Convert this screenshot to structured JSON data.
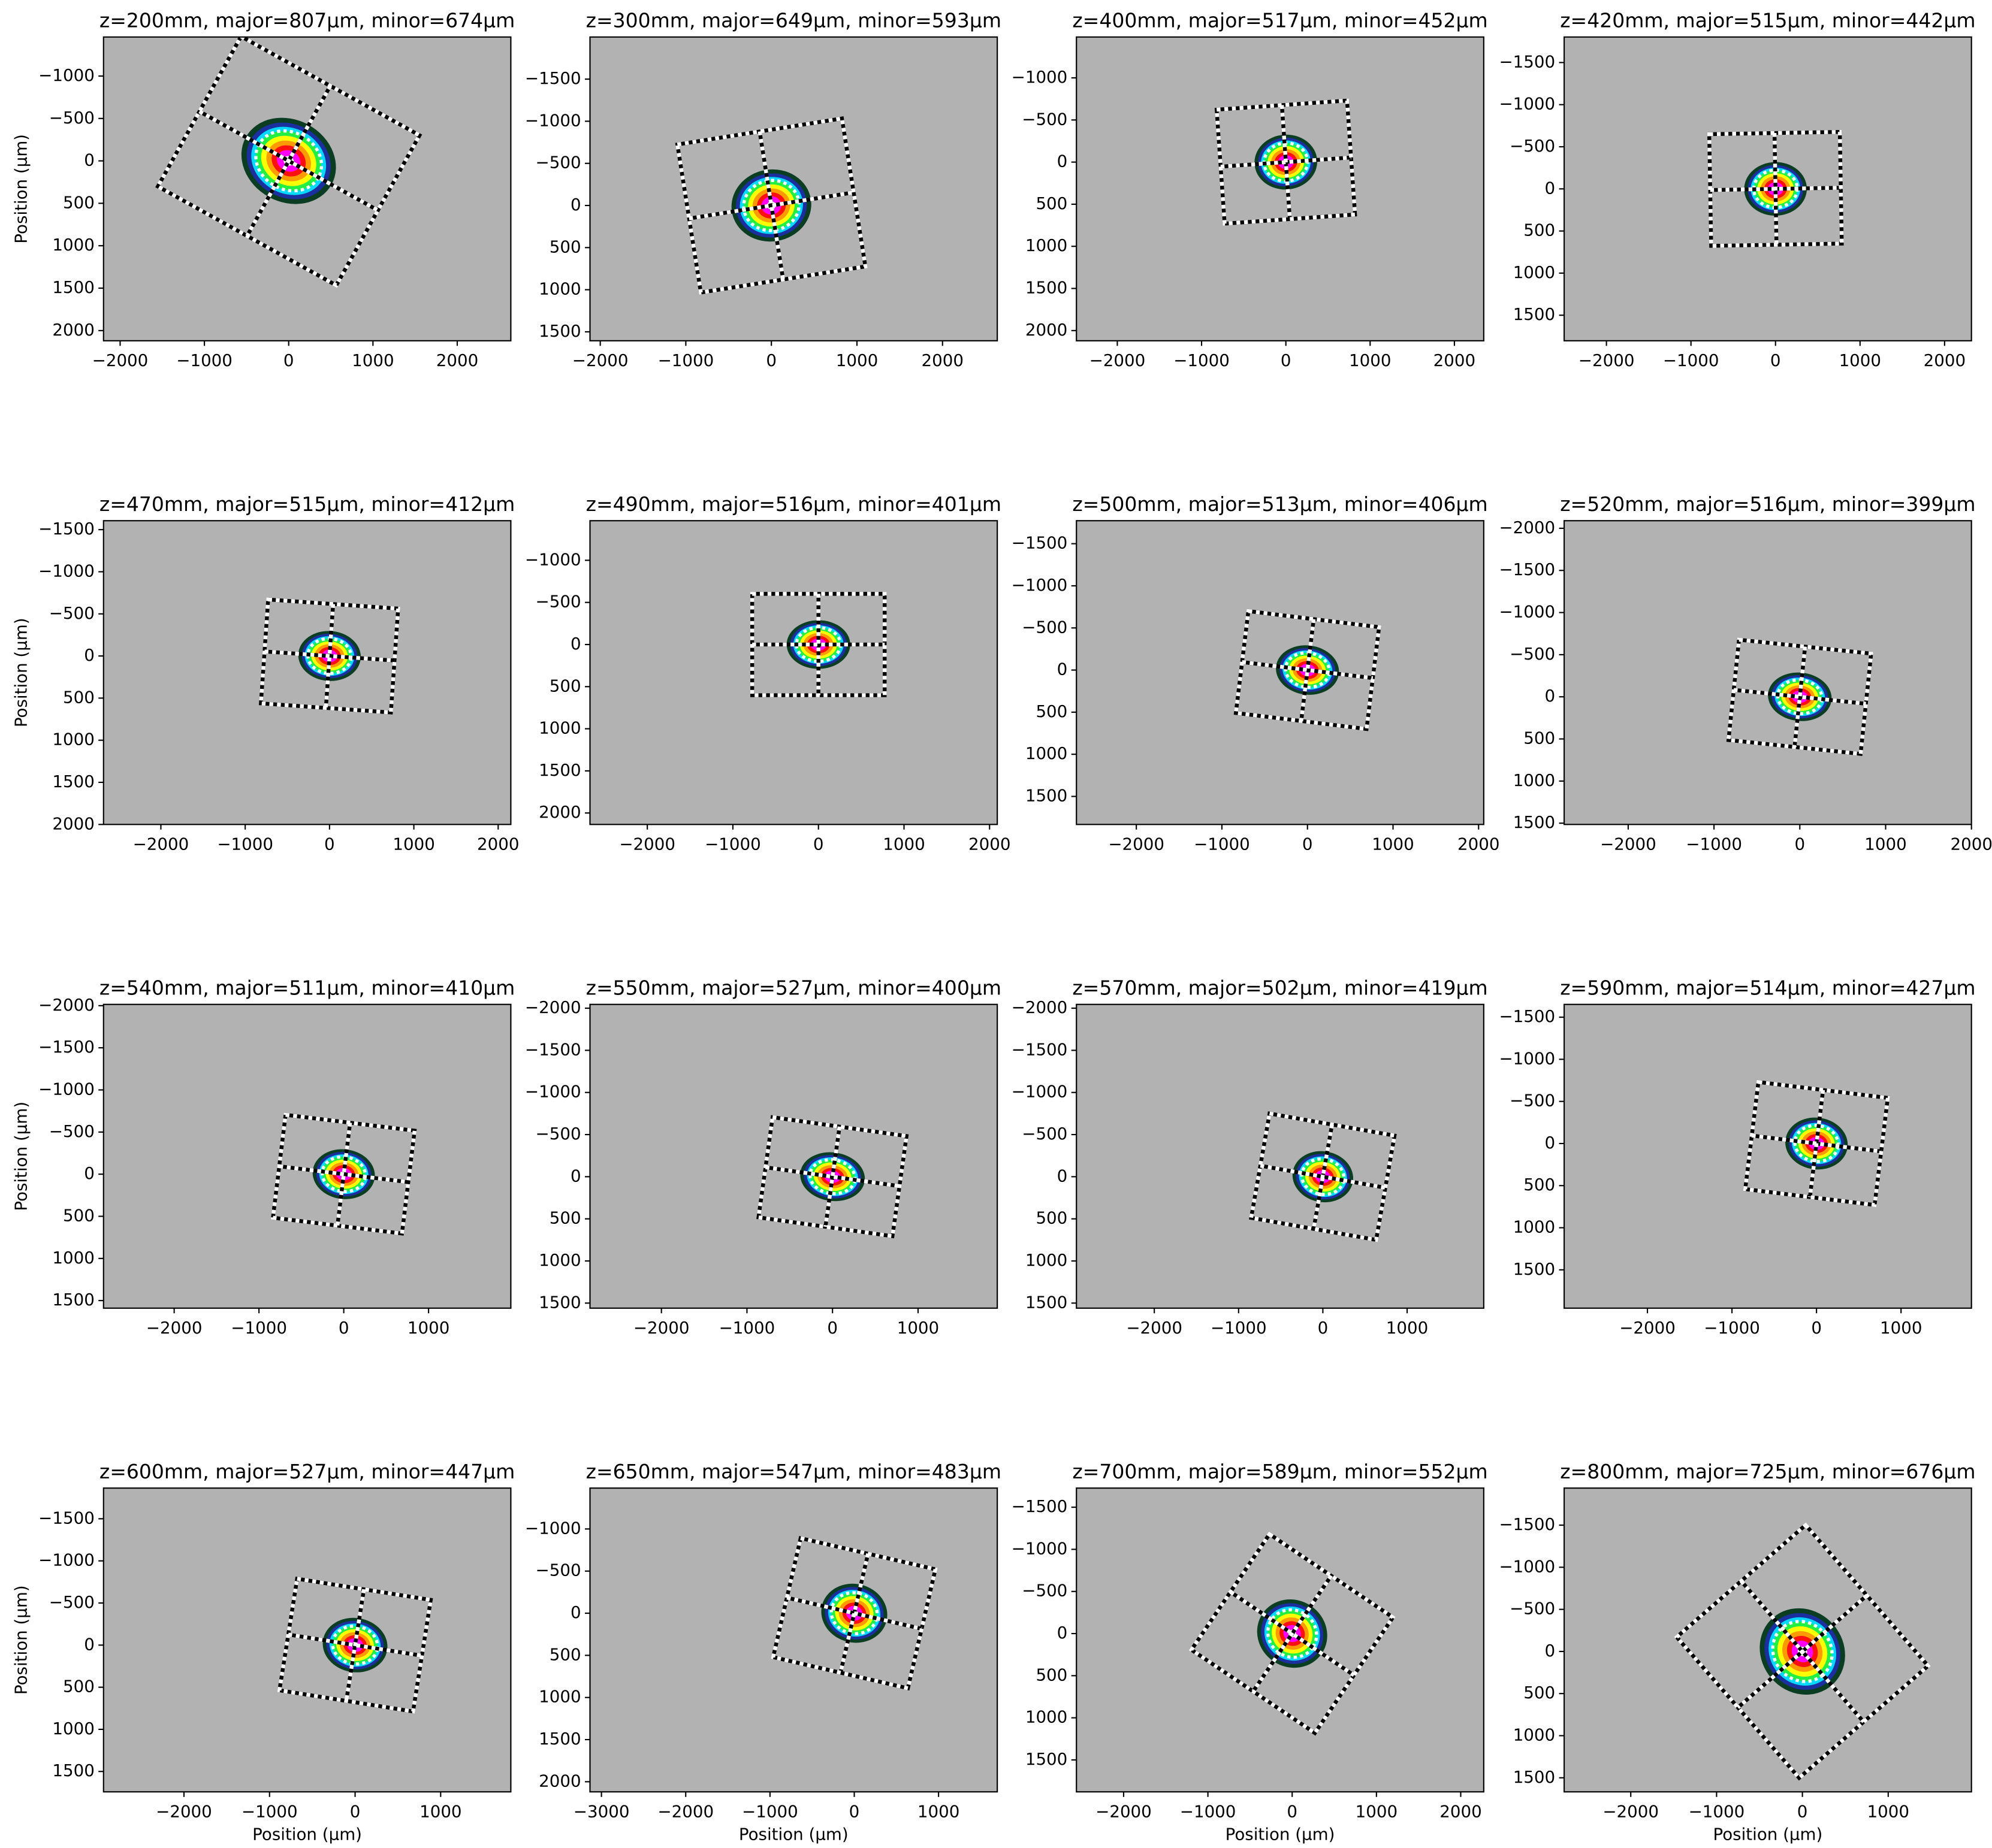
{
  "chart_data": [
    {
      "type": "beam",
      "title": "z=200mm, major=807µm, minor=674µm",
      "major": 807,
      "minor": 674,
      "angle": 29,
      "ylabel": "Position (µm)",
      "xlim": [
        -2197,
        2636
      ],
      "ylim": [
        2120,
        -1460
      ],
      "xticks": [
        {
          "value": -2000,
          "label": "−2000"
        },
        {
          "value": -1000,
          "label": "−1000"
        },
        0,
        1000,
        2000
      ],
      "yticks": [
        {
          "value": -1000,
          "label": "−1000"
        },
        {
          "value": -500,
          "label": "−500"
        },
        0,
        500,
        1000,
        1500,
        2000
      ]
    },
    {
      "type": "beam",
      "title": "z=300mm, major=649µm, minor=593µm",
      "major": 649,
      "minor": 593,
      "angle": -9,
      "xlim": [
        -2120,
        2640
      ],
      "ylim": [
        1606,
        -2000
      ],
      "xticks": [
        {
          "value": -2000,
          "label": "−2000"
        },
        {
          "value": -1000,
          "label": "−1000"
        },
        0,
        1000,
        2000
      ],
      "yticks": [
        {
          "value": -1500,
          "label": "−1500"
        },
        {
          "value": -1000,
          "label": "−1000"
        },
        {
          "value": -500,
          "label": "−500"
        },
        0,
        500,
        1000,
        1500
      ]
    },
    {
      "type": "beam",
      "title": "z=400mm, major=517µm, minor=452µm",
      "major": 517,
      "minor": 452,
      "angle": -4,
      "xlim": [
        -2485,
        2348
      ],
      "ylim": [
        2121,
        -1485
      ],
      "xticks": [
        {
          "value": -2000,
          "label": "−2000"
        },
        {
          "value": -1000,
          "label": "−1000"
        },
        0,
        1000,
        2000
      ],
      "yticks": [
        {
          "value": -1000,
          "label": "−1000"
        },
        {
          "value": -500,
          "label": "−500"
        },
        0,
        500,
        1000,
        1500,
        2000
      ]
    },
    {
      "type": "beam",
      "title": "z=420mm, major=515µm, minor=442µm",
      "major": 515,
      "minor": 442,
      "angle": -1,
      "xlim": [
        -2500,
        2318
      ],
      "ylim": [
        1803,
        -1803
      ],
      "xticks": [
        {
          "value": -2000,
          "label": "−2000"
        },
        {
          "value": -1000,
          "label": "−1000"
        },
        0,
        1000,
        2000
      ],
      "yticks": [
        {
          "value": -1500,
          "label": "−1500"
        },
        {
          "value": -1000,
          "label": "−1000"
        },
        {
          "value": -500,
          "label": "−500"
        },
        0,
        500,
        1000,
        1500
      ]
    },
    {
      "type": "beam",
      "title": "z=470mm, major=515µm, minor=412µm",
      "major": 515,
      "minor": 412,
      "angle": 4,
      "ylabel": "Position (µm)",
      "xlim": [
        -2680,
        2150
      ],
      "ylim": [
        2000,
        -1606
      ],
      "xticks": [
        {
          "value": -2000,
          "label": "−2000"
        },
        {
          "value": -1000,
          "label": "−1000"
        },
        0,
        1000,
        2000
      ],
      "yticks": [
        {
          "value": -1500,
          "label": "−1500"
        },
        {
          "value": -1000,
          "label": "−1000"
        },
        {
          "value": -500,
          "label": "−500"
        },
        0,
        500,
        1000,
        1500,
        2000
      ]
    },
    {
      "type": "beam",
      "title": "z=490mm, major=516µm, minor=401µm",
      "major": 516,
      "minor": 401,
      "angle": 0,
      "xlim": [
        -2670,
        2090
      ],
      "ylim": [
        2136,
        -1470
      ],
      "xticks": [
        {
          "value": -2000,
          "label": "−2000"
        },
        {
          "value": -1000,
          "label": "−1000"
        },
        0,
        1000,
        2000
      ],
      "yticks": [
        {
          "value": -1000,
          "label": "−1000"
        },
        {
          "value": -500,
          "label": "−500"
        },
        0,
        500,
        1000,
        1500,
        2000
      ]
    },
    {
      "type": "beam",
      "title": "z=500mm, major=513µm, minor=406µm",
      "major": 513,
      "minor": 406,
      "angle": 7,
      "xlim": [
        -2700,
        2060
      ],
      "ylim": [
        1833,
        -1773
      ],
      "xticks": [
        {
          "value": -2000,
          "label": "−2000"
        },
        {
          "value": -1000,
          "label": "−1000"
        },
        0,
        1000,
        2000
      ],
      "yticks": [
        {
          "value": -1500,
          "label": "−1500"
        },
        {
          "value": -1000,
          "label": "−1000"
        },
        {
          "value": -500,
          "label": "−500"
        },
        0,
        500,
        1000,
        1500
      ]
    },
    {
      "type": "beam",
      "title": "z=520mm, major=516µm, minor=399µm",
      "major": 516,
      "minor": 399,
      "angle": 6,
      "xlim": [
        -2746,
        2000
      ],
      "ylim": [
        1515,
        -2090
      ],
      "xticks": [
        {
          "value": -2000,
          "label": "−2000"
        },
        {
          "value": -1000,
          "label": "−1000"
        },
        0,
        1000,
        2000
      ],
      "yticks": [
        {
          "value": -2000,
          "label": "−2000"
        },
        {
          "value": -1500,
          "label": "−1500"
        },
        {
          "value": -1000,
          "label": "−1000"
        },
        {
          "value": -500,
          "label": "−500"
        },
        0,
        500,
        1000,
        1500
      ]
    },
    {
      "type": "beam",
      "title": "z=540mm, major=511µm, minor=410µm",
      "major": 511,
      "minor": 410,
      "angle": 7,
      "ylabel": "Position (µm)",
      "xlim": [
        -2833,
        1970
      ],
      "ylim": [
        1590,
        -2015
      ],
      "xticks": [
        {
          "value": -2000,
          "label": "−2000"
        },
        {
          "value": -1000,
          "label": "−1000"
        },
        0,
        1000
      ],
      "yticks": [
        {
          "value": -2000,
          "label": "−2000"
        },
        {
          "value": -1500,
          "label": "−1500"
        },
        {
          "value": -1000,
          "label": "−1000"
        },
        {
          "value": -500,
          "label": "−500"
        },
        0,
        500,
        1000,
        1500
      ]
    },
    {
      "type": "beam",
      "title": "z=550mm, major=527µm, minor=400µm",
      "major": 527,
      "minor": 400,
      "angle": 8,
      "xlim": [
        -2835,
        1926
      ],
      "ylim": [
        1560,
        -2045
      ],
      "xticks": [
        {
          "value": -2000,
          "label": "−2000"
        },
        {
          "value": -1000,
          "label": "−1000"
        },
        0,
        1000
      ],
      "yticks": [
        {
          "value": -2000,
          "label": "−2000"
        },
        {
          "value": -1500,
          "label": "−1500"
        },
        {
          "value": -1000,
          "label": "−1000"
        },
        {
          "value": -500,
          "label": "−500"
        },
        0,
        500,
        1000,
        1500
      ]
    },
    {
      "type": "beam",
      "title": "z=570mm, major=502µm, minor=419µm",
      "major": 502,
      "minor": 419,
      "angle": 10,
      "xlim": [
        -2924,
        1909
      ],
      "ylim": [
        1560,
        -2045
      ],
      "xticks": [
        {
          "value": -2000,
          "label": "−2000"
        },
        {
          "value": -1000,
          "label": "−1000"
        },
        0,
        1000
      ],
      "yticks": [
        {
          "value": -2000,
          "label": "−2000"
        },
        {
          "value": -1500,
          "label": "−1500"
        },
        {
          "value": -1000,
          "label": "−1000"
        },
        {
          "value": -500,
          "label": "−500"
        },
        0,
        500,
        1000,
        1500
      ]
    },
    {
      "type": "beam",
      "title": "z=590mm, major=514µm, minor=427µm",
      "major": 514,
      "minor": 427,
      "angle": 7,
      "xlim": [
        -2985,
        1833
      ],
      "ylim": [
        1955,
        -1652
      ],
      "xticks": [
        {
          "value": -2000,
          "label": "−2000"
        },
        {
          "value": -1000,
          "label": "−1000"
        },
        0,
        1000
      ],
      "yticks": [
        {
          "value": -1500,
          "label": "−1500"
        },
        {
          "value": -1000,
          "label": "−1000"
        },
        {
          "value": -500,
          "label": "−500"
        },
        0,
        500,
        1000,
        1500
      ]
    },
    {
      "type": "beam",
      "title": "z=600mm, major=527µm, minor=447µm",
      "major": 527,
      "minor": 447,
      "angle": 9,
      "ylabel": "Position (µm)",
      "xlabel": "Position (µm)",
      "xlim": [
        -2940,
        1820
      ],
      "ylim": [
        1742,
        -1864
      ],
      "xticks": [
        {
          "value": -2000,
          "label": "−2000"
        },
        {
          "value": -1000,
          "label": "−1000"
        },
        0,
        1000
      ],
      "yticks": [
        {
          "value": -1500,
          "label": "−1500"
        },
        {
          "value": -1000,
          "label": "−1000"
        },
        {
          "value": -500,
          "label": "−500"
        },
        0,
        500,
        1000,
        1500
      ]
    },
    {
      "type": "beam",
      "title": "z=650mm, major=547µm, minor=483µm",
      "major": 547,
      "minor": 483,
      "angle": 13,
      "xlabel": "Position (µm)",
      "xlim": [
        -3136,
        1697
      ],
      "ylim": [
        2120,
        -1485
      ],
      "xticks": [
        {
          "value": -3000,
          "label": "−3000"
        },
        {
          "value": -2000,
          "label": "−2000"
        },
        {
          "value": -1000,
          "label": "−1000"
        },
        0,
        1000
      ],
      "yticks": [
        {
          "value": -1000,
          "label": "−1000"
        },
        {
          "value": -500,
          "label": "−500"
        },
        0,
        500,
        1000,
        1500,
        2000
      ]
    },
    {
      "type": "beam",
      "title": "z=700mm, major=589µm, minor=552µm",
      "major": 589,
      "minor": 552,
      "angle": 34,
      "xlabel": "Position (µm)",
      "xlim": [
        -2560,
        2273
      ],
      "ylim": [
        1879,
        -1727
      ],
      "xticks": [
        {
          "value": -2000,
          "label": "−2000"
        },
        {
          "value": -1000,
          "label": "−1000"
        },
        0,
        1000,
        2000
      ],
      "yticks": [
        {
          "value": -1500,
          "label": "−1500"
        },
        {
          "value": -1000,
          "label": "−1000"
        },
        {
          "value": -500,
          "label": "−500"
        },
        0,
        500,
        1000,
        1500
      ]
    },
    {
      "type": "beam",
      "title": "z=800mm, major=725µm, minor=676µm",
      "major": 725,
      "minor": 676,
      "angle": 49,
      "xlabel": "Position (µm)",
      "xlim": [
        -2776,
        1970
      ],
      "ylim": [
        1667,
        -1940
      ],
      "xticks": [
        {
          "value": -2000,
          "label": "−2000"
        },
        {
          "value": -1000,
          "label": "−1000"
        },
        0,
        1000
      ],
      "yticks": [
        {
          "value": -1500,
          "label": "−1500"
        },
        {
          "value": -1000,
          "label": "−1000"
        },
        {
          "value": -500,
          "label": "−500"
        },
        0,
        500,
        1000,
        1500
      ]
    }
  ]
}
